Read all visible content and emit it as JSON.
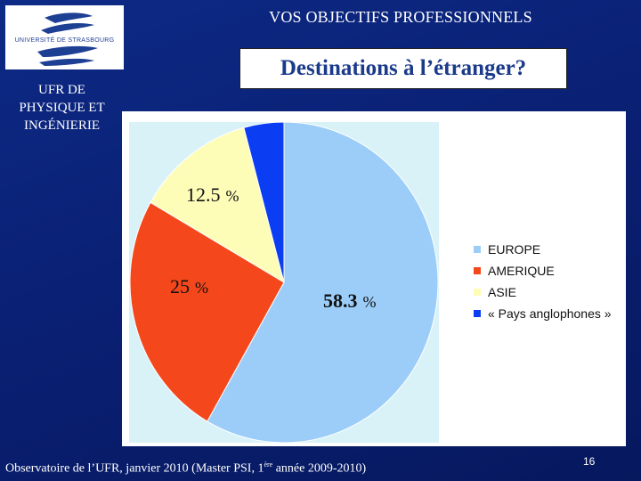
{
  "header": {
    "title": "VOS OBJECTIFS PROFESSIONNELS",
    "slide_title": "Destinations à l’étranger?"
  },
  "logo": {
    "text": "UNIVERSITÉ DE STRASBOURG"
  },
  "side": {
    "lines": [
      "UFR DE",
      "PHYSIQUE ET",
      "INGÉNIERIE"
    ]
  },
  "chart_data": {
    "type": "pie",
    "categories": [
      "EUROPE",
      "AMERIQUE",
      "ASIE",
      "« Pays anglophones »"
    ],
    "values": [
      58.3,
      25,
      12.5,
      4.2
    ],
    "colors": [
      "#9ccdf8",
      "#f4471c",
      "#fdfdb8",
      "#0b3ef2"
    ],
    "data_labels": [
      {
        "value": "58.3",
        "unit": "%"
      },
      {
        "value": "25",
        "unit": "%"
      },
      {
        "value": "12.5",
        "unit": "%"
      }
    ],
    "legend_position": "right"
  },
  "footer": {
    "text_before": "Observatoire de l’UFR, janvier 2010 (Master PSI, 1",
    "superscript": "ère",
    "text_after": " année 2009-2010)",
    "page_number": "16"
  }
}
